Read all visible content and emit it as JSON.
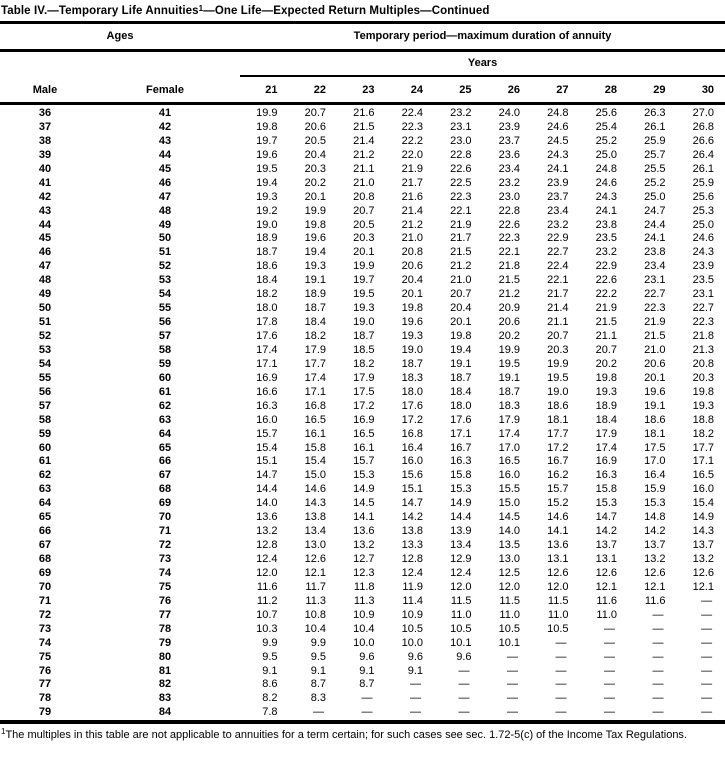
{
  "title": {
    "part1": "Table IV.—Temporary Life Annuities",
    "superscript": "1",
    "part2": "—One Life—Expected Return Multiples—Continued"
  },
  "table": {
    "ages_group_label": "Ages",
    "period_group_label": "Temporary period—maximum duration of annuity",
    "years_label": "Years",
    "male_label": "Male",
    "female_label": "Female",
    "year_columns": [
      "21",
      "22",
      "23",
      "24",
      "25",
      "26",
      "27",
      "28",
      "29",
      "30"
    ],
    "rows": [
      {
        "male": "36",
        "female": "41",
        "values": [
          "19.9",
          "20.7",
          "21.6",
          "22.4",
          "23.2",
          "24.0",
          "24.8",
          "25.6",
          "26.3",
          "27.0"
        ]
      },
      {
        "male": "37",
        "female": "42",
        "values": [
          "19.8",
          "20.6",
          "21.5",
          "22.3",
          "23.1",
          "23.9",
          "24.6",
          "25.4",
          "26.1",
          "26.8"
        ]
      },
      {
        "male": "38",
        "female": "43",
        "values": [
          "19.7",
          "20.5",
          "21.4",
          "22.2",
          "23.0",
          "23.7",
          "24.5",
          "25.2",
          "25.9",
          "26.6"
        ]
      },
      {
        "male": "39",
        "female": "44",
        "values": [
          "19.6",
          "20.4",
          "21.2",
          "22.0",
          "22.8",
          "23.6",
          "24.3",
          "25.0",
          "25.7",
          "26.4"
        ]
      },
      {
        "male": "40",
        "female": "45",
        "values": [
          "19.5",
          "20.3",
          "21.1",
          "21.9",
          "22.6",
          "23.4",
          "24.1",
          "24.8",
          "25.5",
          "26.1"
        ]
      },
      {
        "male": "41",
        "female": "46",
        "values": [
          "19.4",
          "20.2",
          "21.0",
          "21.7",
          "22.5",
          "23.2",
          "23.9",
          "24.6",
          "25.2",
          "25.9"
        ]
      },
      {
        "male": "42",
        "female": "47",
        "values": [
          "19.3",
          "20.1",
          "20.8",
          "21.6",
          "22.3",
          "23.0",
          "23.7",
          "24.3",
          "25.0",
          "25.6"
        ]
      },
      {
        "male": "43",
        "female": "48",
        "values": [
          "19.2",
          "19.9",
          "20.7",
          "21.4",
          "22.1",
          "22.8",
          "23.4",
          "24.1",
          "24.7",
          "25.3"
        ]
      },
      {
        "male": "44",
        "female": "49",
        "values": [
          "19.0",
          "19.8",
          "20.5",
          "21.2",
          "21.9",
          "22.6",
          "23.2",
          "23.8",
          "24.4",
          "25.0"
        ]
      },
      {
        "male": "45",
        "female": "50",
        "values": [
          "18.9",
          "19.6",
          "20.3",
          "21.0",
          "21.7",
          "22.3",
          "22.9",
          "23.5",
          "24.1",
          "24.6"
        ]
      },
      {
        "male": "46",
        "female": "51",
        "values": [
          "18.7",
          "19.4",
          "20.1",
          "20.8",
          "21.5",
          "22.1",
          "22.7",
          "23.2",
          "23.8",
          "24.3"
        ]
      },
      {
        "male": "47",
        "female": "52",
        "values": [
          "18.6",
          "19.3",
          "19.9",
          "20.6",
          "21.2",
          "21.8",
          "22.4",
          "22.9",
          "23.4",
          "23.9"
        ]
      },
      {
        "male": "48",
        "female": "53",
        "values": [
          "18.4",
          "19.1",
          "19.7",
          "20.4",
          "21.0",
          "21.5",
          "22.1",
          "22.6",
          "23.1",
          "23.5"
        ]
      },
      {
        "male": "49",
        "female": "54",
        "values": [
          "18.2",
          "18.9",
          "19.5",
          "20.1",
          "20.7",
          "21.2",
          "21.7",
          "22.2",
          "22.7",
          "23.1"
        ]
      },
      {
        "male": "50",
        "female": "55",
        "values": [
          "18.0",
          "18.7",
          "19.3",
          "19.8",
          "20.4",
          "20.9",
          "21.4",
          "21.9",
          "22.3",
          "22.7"
        ]
      },
      {
        "male": "51",
        "female": "56",
        "values": [
          "17.8",
          "18.4",
          "19.0",
          "19.6",
          "20.1",
          "20.6",
          "21.1",
          "21.5",
          "21.9",
          "22.3"
        ]
      },
      {
        "male": "52",
        "female": "57",
        "values": [
          "17.6",
          "18.2",
          "18.7",
          "19.3",
          "19.8",
          "20.2",
          "20.7",
          "21.1",
          "21.5",
          "21.8"
        ]
      },
      {
        "male": "53",
        "female": "58",
        "values": [
          "17.4",
          "17.9",
          "18.5",
          "19.0",
          "19.4",
          "19.9",
          "20.3",
          "20.7",
          "21.0",
          "21.3"
        ]
      },
      {
        "male": "54",
        "female": "59",
        "values": [
          "17.1",
          "17.7",
          "18.2",
          "18.7",
          "19.1",
          "19.5",
          "19.9",
          "20.2",
          "20.6",
          "20.8"
        ]
      },
      {
        "male": "55",
        "female": "60",
        "values": [
          "16.9",
          "17.4",
          "17.9",
          "18.3",
          "18.7",
          "19.1",
          "19.5",
          "19.8",
          "20.1",
          "20.3"
        ]
      },
      {
        "male": "56",
        "female": "61",
        "values": [
          "16.6",
          "17.1",
          "17.5",
          "18.0",
          "18.4",
          "18.7",
          "19.0",
          "19.3",
          "19.6",
          "19.8"
        ]
      },
      {
        "male": "57",
        "female": "62",
        "values": [
          "16.3",
          "16.8",
          "17.2",
          "17.6",
          "18.0",
          "18.3",
          "18.6",
          "18.9",
          "19.1",
          "19.3"
        ]
      },
      {
        "male": "58",
        "female": "63",
        "values": [
          "16.0",
          "16.5",
          "16.9",
          "17.2",
          "17.6",
          "17.9",
          "18.1",
          "18.4",
          "18.6",
          "18.8"
        ]
      },
      {
        "male": "59",
        "female": "64",
        "values": [
          "15.7",
          "16.1",
          "16.5",
          "16.8",
          "17.1",
          "17.4",
          "17.7",
          "17.9",
          "18.1",
          "18.2"
        ]
      },
      {
        "male": "60",
        "female": "65",
        "values": [
          "15.4",
          "15.8",
          "16.1",
          "16.4",
          "16.7",
          "17.0",
          "17.2",
          "17.4",
          "17.5",
          "17.7"
        ]
      },
      {
        "male": "61",
        "female": "66",
        "values": [
          "15.1",
          "15.4",
          "15.7",
          "16.0",
          "16.3",
          "16.5",
          "16.7",
          "16.9",
          "17.0",
          "17.1"
        ]
      },
      {
        "male": "62",
        "female": "67",
        "values": [
          "14.7",
          "15.0",
          "15.3",
          "15.6",
          "15.8",
          "16.0",
          "16.2",
          "16.3",
          "16.4",
          "16.5"
        ]
      },
      {
        "male": "63",
        "female": "68",
        "values": [
          "14.4",
          "14.6",
          "14.9",
          "15.1",
          "15.3",
          "15.5",
          "15.7",
          "15.8",
          "15.9",
          "16.0"
        ]
      },
      {
        "male": "64",
        "female": "69",
        "values": [
          "14.0",
          "14.3",
          "14.5",
          "14.7",
          "14.9",
          "15.0",
          "15.2",
          "15.3",
          "15.3",
          "15.4"
        ]
      },
      {
        "male": "65",
        "female": "70",
        "values": [
          "13.6",
          "13.8",
          "14.1",
          "14.2",
          "14.4",
          "14.5",
          "14.6",
          "14.7",
          "14.8",
          "14.9"
        ]
      },
      {
        "male": "66",
        "female": "71",
        "values": [
          "13.2",
          "13.4",
          "13.6",
          "13.8",
          "13.9",
          "14.0",
          "14.1",
          "14.2",
          "14.2",
          "14.3"
        ]
      },
      {
        "male": "67",
        "female": "72",
        "values": [
          "12.8",
          "13.0",
          "13.2",
          "13.3",
          "13.4",
          "13.5",
          "13.6",
          "13.7",
          "13.7",
          "13.7"
        ]
      },
      {
        "male": "68",
        "female": "73",
        "values": [
          "12.4",
          "12.6",
          "12.7",
          "12.8",
          "12.9",
          "13.0",
          "13.1",
          "13.1",
          "13.2",
          "13.2"
        ]
      },
      {
        "male": "69",
        "female": "74",
        "values": [
          "12.0",
          "12.1",
          "12.3",
          "12.4",
          "12.4",
          "12.5",
          "12.6",
          "12.6",
          "12.6",
          "12.6"
        ]
      },
      {
        "male": "70",
        "female": "75",
        "values": [
          "11.6",
          "11.7",
          "11.8",
          "11.9",
          "12.0",
          "12.0",
          "12.0",
          "12.1",
          "12.1",
          "12.1"
        ]
      },
      {
        "male": "71",
        "female": "76",
        "values": [
          "11.2",
          "11.3",
          "11.3",
          "11.4",
          "11.5",
          "11.5",
          "11.5",
          "11.6",
          "11.6",
          "—"
        ]
      },
      {
        "male": "72",
        "female": "77",
        "values": [
          "10.7",
          "10.8",
          "10.9",
          "10.9",
          "11.0",
          "11.0",
          "11.0",
          "11.0",
          "—",
          "—"
        ]
      },
      {
        "male": "73",
        "female": "78",
        "values": [
          "10.3",
          "10.4",
          "10.4",
          "10.5",
          "10.5",
          "10.5",
          "10.5",
          "—",
          "—",
          "—"
        ]
      },
      {
        "male": "74",
        "female": "79",
        "values": [
          "9.9",
          "9.9",
          "10.0",
          "10.0",
          "10.1",
          "10.1",
          "—",
          "—",
          "—",
          "—"
        ]
      },
      {
        "male": "75",
        "female": "80",
        "values": [
          "9.5",
          "9.5",
          "9.6",
          "9.6",
          "9.6",
          "—",
          "—",
          "—",
          "—",
          "—"
        ]
      },
      {
        "male": "76",
        "female": "81",
        "values": [
          "9.1",
          "9.1",
          "9.1",
          "9.1",
          "—",
          "—",
          "—",
          "—",
          "—",
          "—"
        ]
      },
      {
        "male": "77",
        "female": "82",
        "values": [
          "8.6",
          "8.7",
          "8.7",
          "—",
          "—",
          "—",
          "—",
          "—",
          "—",
          "—"
        ]
      },
      {
        "male": "78",
        "female": "83",
        "values": [
          "8.2",
          "8.3",
          "—",
          "—",
          "—",
          "—",
          "—",
          "—",
          "—",
          "—"
        ]
      },
      {
        "male": "79",
        "female": "84",
        "values": [
          "7.8",
          "—",
          "—",
          "—",
          "—",
          "—",
          "—",
          "—",
          "—",
          "—"
        ]
      }
    ]
  },
  "footnote": {
    "superscript": "1",
    "text": "The multiples in this table are not applicable to annuities for a term certain; for such cases see sec. 1.72-5(c) of the Income Tax Regulations."
  }
}
